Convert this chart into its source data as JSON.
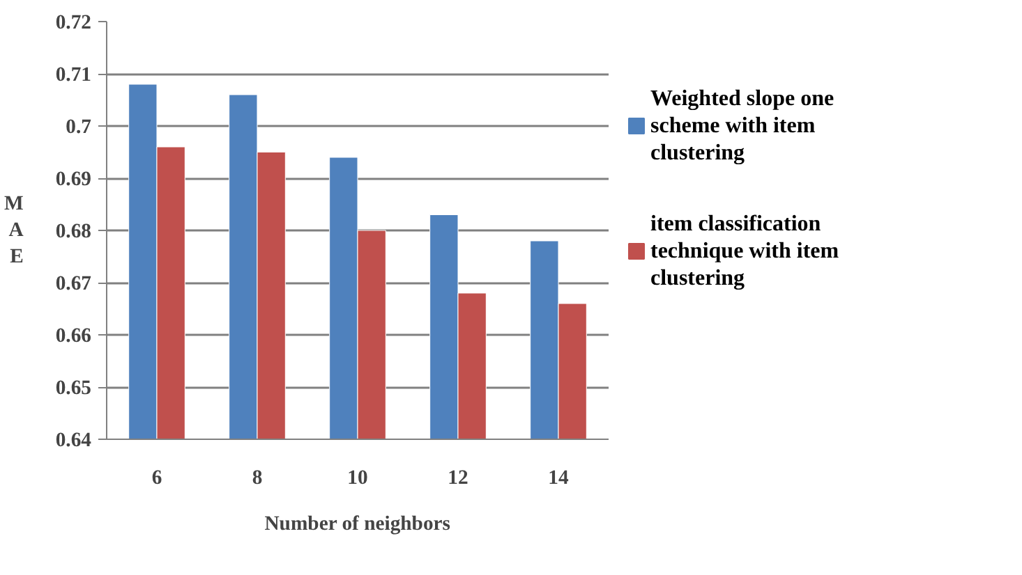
{
  "chart_data": {
    "type": "bar",
    "xlabel": "Number of neighbors",
    "ylabel": "MAE",
    "categories": [
      "6",
      "8",
      "10",
      "12",
      "14"
    ],
    "series": [
      {
        "name": "Weighted slope one scheme with item clustering",
        "color": "#4f81bd",
        "values": [
          0.708,
          0.706,
          0.694,
          0.683,
          0.678
        ]
      },
      {
        "name": "item classification technique with item clustering",
        "color": "#c0504d",
        "values": [
          0.696,
          0.695,
          0.68,
          0.668,
          0.666
        ]
      }
    ],
    "ylim": [
      0.64,
      0.72
    ],
    "yticks": [
      0.64,
      0.65,
      0.66,
      0.67,
      0.68,
      0.69,
      {
        "value": 0.7,
        "label": "0.7"
      },
      0.71,
      0.72
    ],
    "grid": "y",
    "legend": "right"
  }
}
